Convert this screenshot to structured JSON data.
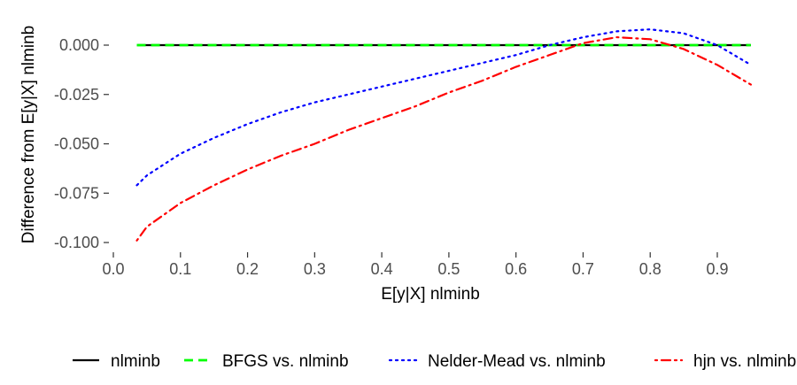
{
  "chart_data": {
    "type": "line",
    "xlabel": "E[y|X] nlminb",
    "ylabel": "Difference from E[y|X] nlminb",
    "xlim": [
      0.0,
      0.95
    ],
    "ylim": [
      -0.1,
      0.0
    ],
    "x_ticks": [
      "0.0",
      "0.1",
      "0.2",
      "0.3",
      "0.4",
      "0.5",
      "0.6",
      "0.7",
      "0.8",
      "0.9"
    ],
    "y_ticks": [
      "0.000",
      "-0.025",
      "-0.050",
      "-0.075",
      "-0.100"
    ],
    "grid": false,
    "legend_position": "bottom",
    "series": [
      {
        "name": "nlminb",
        "color": "#000000",
        "dash": "solid",
        "x": [
          0.035,
          0.95
        ],
        "y": [
          0.0,
          0.0
        ]
      },
      {
        "name": "BFGS vs. nlminb",
        "color": "#00ff00",
        "dash": "dashed",
        "x": [
          0.035,
          0.95
        ],
        "y": [
          0.0,
          0.0
        ]
      },
      {
        "name": "Nelder-Mead vs. nlminb",
        "color": "#0000ff",
        "dash": "dotted",
        "x": [
          0.035,
          0.05,
          0.1,
          0.15,
          0.2,
          0.25,
          0.3,
          0.35,
          0.4,
          0.45,
          0.5,
          0.55,
          0.6,
          0.65,
          0.7,
          0.75,
          0.8,
          0.85,
          0.9,
          0.95
        ],
        "y": [
          -0.071,
          -0.066,
          -0.055,
          -0.047,
          -0.04,
          -0.034,
          -0.029,
          -0.025,
          -0.021,
          -0.017,
          -0.013,
          -0.009,
          -0.005,
          0.0,
          0.004,
          0.007,
          0.008,
          0.006,
          0.0,
          -0.01
        ]
      },
      {
        "name": "hjn vs. nlminb",
        "color": "#ff0000",
        "dash": "dotdash",
        "x": [
          0.035,
          0.05,
          0.1,
          0.15,
          0.2,
          0.25,
          0.3,
          0.35,
          0.4,
          0.45,
          0.5,
          0.55,
          0.6,
          0.65,
          0.7,
          0.75,
          0.8,
          0.85,
          0.9,
          0.95
        ],
        "y": [
          -0.099,
          -0.092,
          -0.08,
          -0.071,
          -0.063,
          -0.056,
          -0.05,
          -0.043,
          -0.037,
          -0.031,
          -0.024,
          -0.018,
          -0.011,
          -0.005,
          0.001,
          0.004,
          0.003,
          -0.002,
          -0.01,
          -0.02
        ]
      }
    ]
  }
}
